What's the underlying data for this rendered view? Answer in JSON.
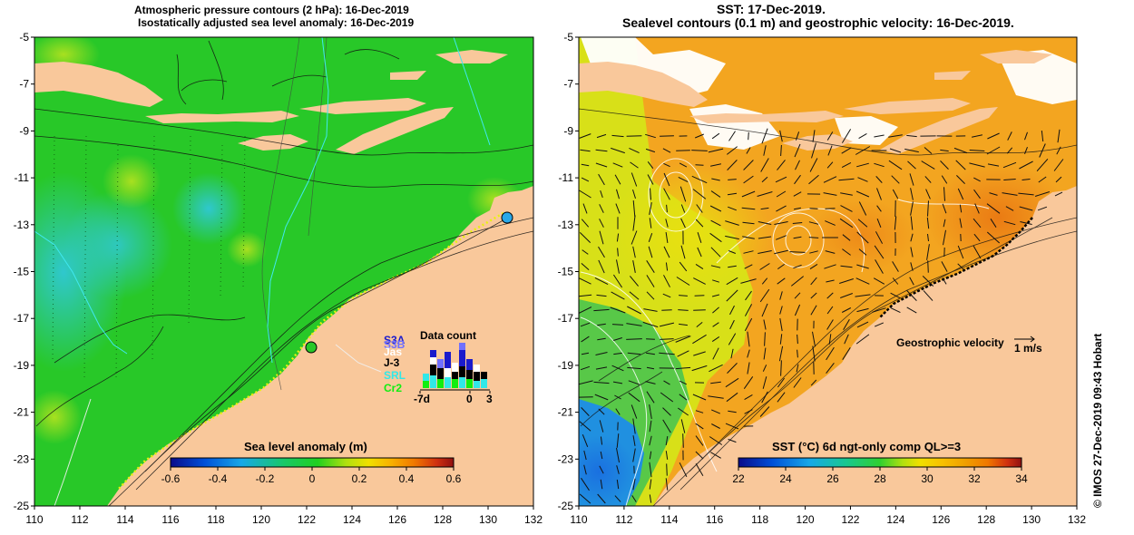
{
  "left_panel": {
    "title_line1": "Atmospheric pressure contours (2 hPa): 16-Dec-2019",
    "title_line2": "Isostatically adjusted sea level anomaly: 16-Dec-2019",
    "colorbar": {
      "title": "Sea level anomaly (m)",
      "ticks": [
        "-0.6",
        "-0.4",
        "-0.2",
        "0",
        "0.2",
        "0.4",
        "0.6"
      ],
      "colors": [
        "#0a0a8a",
        "#0050d8",
        "#18a8e8",
        "#18c868",
        "#20d020",
        "#b0e010",
        "#f0e000",
        "#f8b000",
        "#f07800",
        "#d03010",
        "#901010"
      ]
    },
    "data_count": {
      "title": "Data count",
      "legend": [
        {
          "label": "S3A",
          "color": "#1a1acc"
        },
        {
          "label": "S3B",
          "color": "#7070ff"
        },
        {
          "label": "Jas",
          "color": "#ffffff"
        },
        {
          "label": "J-3",
          "color": "#000000"
        },
        {
          "label": "SRL",
          "color": "#30e8e8"
        },
        {
          "label": "Cr2",
          "color": "#10ee10"
        }
      ],
      "x_ticks": [
        "-7d",
        "0",
        "3"
      ]
    }
  },
  "right_panel": {
    "title_line1": "SST: 17-Dec-2019.",
    "title_line2": "Sealevel contours (0.1 m) and geostrophic velocity: 16-Dec-2019.",
    "velocity_label": "Geostrophic velocity",
    "velocity_scale": "1 m/s",
    "colorbar": {
      "title": "SST (°C) 6d ngt-only comp QL>=3",
      "ticks": [
        "22",
        "24",
        "26",
        "28",
        "30",
        "32",
        "34"
      ],
      "colors": [
        "#0a0a8a",
        "#0050d8",
        "#18a8e8",
        "#18c890",
        "#30d030",
        "#b0e010",
        "#f0e000",
        "#f8c000",
        "#f0a000",
        "#f07800",
        "#d03010",
        "#901010"
      ]
    }
  },
  "axes": {
    "x_ticks": [
      "110",
      "112",
      "114",
      "116",
      "118",
      "120",
      "122",
      "124",
      "126",
      "128",
      "130",
      "132"
    ],
    "y_ticks": [
      "-5",
      "-7",
      "-9",
      "-11",
      "-13",
      "-15",
      "-17",
      "-19",
      "-21",
      "-23",
      "-25"
    ]
  },
  "map_colors": {
    "land": "#f9c89b",
    "sea_green": "#28c828",
    "sea_cyan": "#38d8b0",
    "sst_orange": "#f3a520",
    "sst_yellow": "#e8e010",
    "sst_blue": "#2090e0"
  },
  "credit": "© IMOS 27-Dec-2019 09:43 Hobart"
}
